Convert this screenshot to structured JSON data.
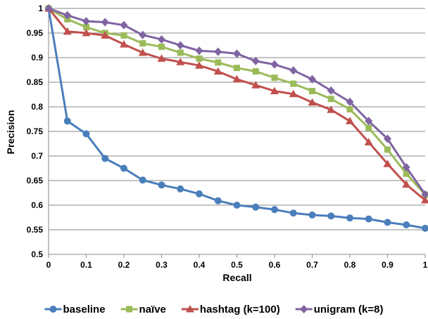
{
  "chart_data": {
    "type": "line",
    "xlabel": "Recall",
    "ylabel": "Precision",
    "xlim": [
      0,
      1
    ],
    "ylim": [
      0.5,
      1
    ],
    "x_ticks": [
      "0",
      "0.1",
      "0.2",
      "0.3",
      "0.4",
      "0.5",
      "0.6",
      "0.7",
      "0.8",
      "0.9",
      "1"
    ],
    "y_ticks": [
      "0.5",
      "0.55",
      "0.6",
      "0.65",
      "0.7",
      "0.75",
      "0.8",
      "0.85",
      "0.9",
      "0.95",
      "1"
    ],
    "grid": "horizontal",
    "legend_position": "bottom",
    "x": [
      0,
      0.05,
      0.1,
      0.15,
      0.2,
      0.25,
      0.3,
      0.35,
      0.4,
      0.45,
      0.5,
      0.55,
      0.6,
      0.65,
      0.7,
      0.75,
      0.8,
      0.85,
      0.9,
      0.95,
      1
    ],
    "series": [
      {
        "name": "baseline",
        "color": "#4a7ebb",
        "marker": "circle",
        "values": [
          1.0,
          0.771,
          0.745,
          0.695,
          0.675,
          0.651,
          0.641,
          0.633,
          0.623,
          0.609,
          0.6,
          0.596,
          0.591,
          0.584,
          0.58,
          0.578,
          0.574,
          0.572,
          0.565,
          0.56,
          0.553
        ]
      },
      {
        "name": "naïve",
        "color": "#9bbb59",
        "marker": "square",
        "values": [
          1.0,
          0.978,
          0.962,
          0.95,
          0.945,
          0.929,
          0.922,
          0.91,
          0.898,
          0.89,
          0.879,
          0.872,
          0.859,
          0.847,
          0.832,
          0.816,
          0.795,
          0.757,
          0.713,
          0.664,
          0.621
        ]
      },
      {
        "name": "hashtag (k=100)",
        "color": "#c0504d",
        "marker": "triangle",
        "values": [
          1.0,
          0.953,
          0.95,
          0.945,
          0.927,
          0.91,
          0.898,
          0.891,
          0.884,
          0.872,
          0.856,
          0.844,
          0.832,
          0.826,
          0.809,
          0.794,
          0.771,
          0.728,
          0.684,
          0.642,
          0.61
        ]
      },
      {
        "name": "unigram (k=8)",
        "color": "#8064a2",
        "marker": "diamond",
        "values": [
          1.0,
          0.986,
          0.974,
          0.972,
          0.966,
          0.946,
          0.937,
          0.925,
          0.914,
          0.912,
          0.908,
          0.893,
          0.886,
          0.874,
          0.856,
          0.833,
          0.81,
          0.771,
          0.735,
          0.677,
          0.622
        ]
      }
    ]
  }
}
